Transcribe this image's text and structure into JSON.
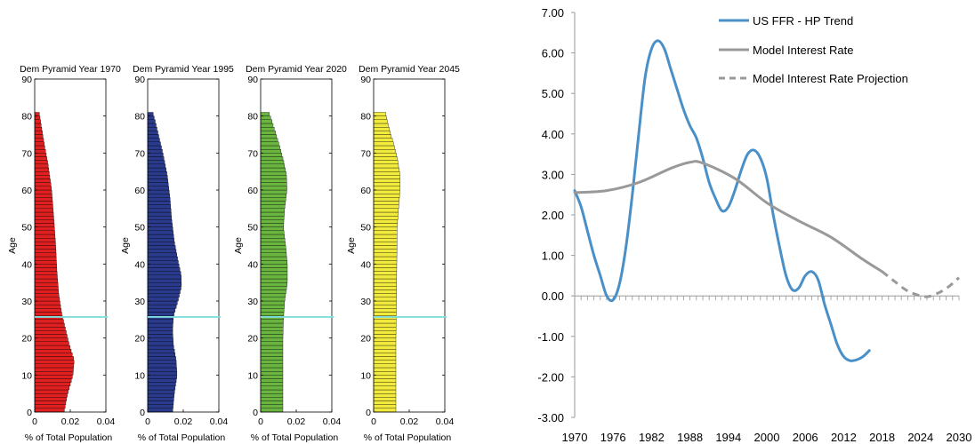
{
  "chart_data": [
    {
      "type": "bar",
      "orientation": "horizontal",
      "title": "Dem Pyramid Year 1970",
      "xlabel": "% of Total Population",
      "ylabel": "Age",
      "xlim": [
        0,
        0.04
      ],
      "ylim": [
        0,
        90
      ],
      "xticks": [
        "0",
        "0.02",
        "0.04"
      ],
      "yticks": [
        "0",
        "10",
        "20",
        "30",
        "40",
        "50",
        "60",
        "70",
        "80",
        "90"
      ],
      "bar_color": "#e02020",
      "reference_line_age": 25.7,
      "profile": [
        [
          0,
          0.0165
        ],
        [
          5,
          0.0185
        ],
        [
          10,
          0.0215
        ],
        [
          14,
          0.0222
        ],
        [
          18,
          0.0195
        ],
        [
          22,
          0.0175
        ],
        [
          27,
          0.015
        ],
        [
          32,
          0.0135
        ],
        [
          38,
          0.0125
        ],
        [
          45,
          0.0118
        ],
        [
          52,
          0.0108
        ],
        [
          60,
          0.0095
        ],
        [
          67,
          0.0075
        ],
        [
          72,
          0.0055
        ],
        [
          77,
          0.0038
        ],
        [
          81,
          0.0025
        ]
      ]
    },
    {
      "type": "bar",
      "orientation": "horizontal",
      "title": "Dem Pyramid Year 1995",
      "xlabel": "% of Total Population",
      "ylabel": "Age",
      "xlim": [
        0,
        0.04
      ],
      "ylim": [
        0,
        90
      ],
      "xticks": [
        "0",
        "0.02",
        "0.04"
      ],
      "yticks": [
        "0",
        "10",
        "20",
        "30",
        "40",
        "50",
        "60",
        "70",
        "80",
        "90"
      ],
      "bar_color": "#2a3a8c",
      "reference_line_age": 25.7,
      "profile": [
        [
          0,
          0.014
        ],
        [
          5,
          0.015
        ],
        [
          10,
          0.0165
        ],
        [
          14,
          0.016
        ],
        [
          18,
          0.0145
        ],
        [
          22,
          0.014
        ],
        [
          26,
          0.0145
        ],
        [
          30,
          0.017
        ],
        [
          34,
          0.019
        ],
        [
          37,
          0.0188
        ],
        [
          41,
          0.017
        ],
        [
          46,
          0.015
        ],
        [
          52,
          0.0135
        ],
        [
          58,
          0.0125
        ],
        [
          64,
          0.011
        ],
        [
          70,
          0.0085
        ],
        [
          75,
          0.006
        ],
        [
          79,
          0.004
        ],
        [
          81,
          0.0028
        ]
      ]
    },
    {
      "type": "bar",
      "orientation": "horizontal",
      "title": "Dem Pyramid Year 2020",
      "xlabel": "% of Total Population",
      "ylabel": "Age",
      "xlim": [
        0,
        0.04
      ],
      "ylim": [
        0,
        90
      ],
      "xticks": [
        "0",
        "0.02",
        "0.04"
      ],
      "yticks": [
        "0",
        "10",
        "20",
        "30",
        "40",
        "50",
        "60",
        "70",
        "80",
        "90"
      ],
      "bar_color": "#6ab540",
      "reference_line_age": 25.7,
      "profile": [
        [
          0,
          0.0125
        ],
        [
          10,
          0.0125
        ],
        [
          20,
          0.0125
        ],
        [
          25,
          0.0128
        ],
        [
          30,
          0.0135
        ],
        [
          35,
          0.015
        ],
        [
          40,
          0.015
        ],
        [
          45,
          0.014
        ],
        [
          50,
          0.0128
        ],
        [
          55,
          0.0135
        ],
        [
          60,
          0.0148
        ],
        [
          64,
          0.0145
        ],
        [
          68,
          0.0128
        ],
        [
          72,
          0.0105
        ],
        [
          76,
          0.008
        ],
        [
          79,
          0.006
        ],
        [
          81,
          0.0045
        ]
      ]
    },
    {
      "type": "bar",
      "orientation": "horizontal",
      "title": "Dem Pyramid Year 2045",
      "xlabel": "% of Total Population",
      "ylabel": "Age",
      "xlim": [
        0,
        0.04
      ],
      "ylim": [
        0,
        90
      ],
      "xticks": [
        "0",
        "0.02",
        "0.04"
      ],
      "yticks": [
        "0",
        "10",
        "20",
        "30",
        "40",
        "50",
        "60",
        "70",
        "80",
        "90"
      ],
      "bar_color": "#f2ea3c",
      "reference_line_age": 25.7,
      "profile": [
        [
          0,
          0.0125
        ],
        [
          20,
          0.0125
        ],
        [
          30,
          0.0128
        ],
        [
          40,
          0.013
        ],
        [
          50,
          0.0132
        ],
        [
          55,
          0.014
        ],
        [
          60,
          0.0148
        ],
        [
          64,
          0.0148
        ],
        [
          68,
          0.0135
        ],
        [
          72,
          0.0115
        ],
        [
          76,
          0.009
        ],
        [
          79,
          0.0075
        ],
        [
          81,
          0.0065
        ]
      ]
    },
    {
      "type": "line",
      "x_ticks": [
        "1970",
        "1976",
        "1982",
        "1988",
        "1994",
        "2000",
        "2006",
        "2012",
        "2018",
        "2024",
        "2030"
      ],
      "y_ticks": [
        "7.00",
        "6.00",
        "5.00",
        "4.00",
        "3.00",
        "2.00",
        "1.00",
        "0.00",
        "-1.00",
        "-2.00",
        "-3.00"
      ],
      "xlim": [
        1970,
        2030
      ],
      "ylim": [
        -3,
        7
      ],
      "legend_position": "top-right",
      "series": [
        {
          "name": "US FFR - HP Trend",
          "color": "#4a90c8",
          "style": "solid",
          "x": [
            1970,
            1971,
            1972,
            1973,
            1974,
            1975,
            1976,
            1977,
            1978,
            1979,
            1980,
            1981,
            1982,
            1983,
            1984,
            1985,
            1986,
            1987,
            1988,
            1989,
            1990,
            1991,
            1992,
            1993,
            1994,
            1995,
            1996,
            1997,
            1998,
            1999,
            2000,
            2001,
            2002,
            2003,
            2004,
            2005,
            2006,
            2007,
            2008,
            2009,
            2010,
            2011,
            2012,
            2013,
            2014,
            2015,
            2016
          ],
          "y": [
            2.6,
            2.2,
            1.6,
            1.0,
            0.5,
            0.0,
            -0.1,
            0.3,
            1.2,
            2.5,
            4.0,
            5.4,
            6.1,
            6.3,
            6.1,
            5.6,
            5.1,
            4.6,
            4.2,
            3.9,
            3.4,
            2.8,
            2.4,
            2.1,
            2.2,
            2.6,
            3.1,
            3.5,
            3.6,
            3.4,
            2.9,
            2.0,
            1.2,
            0.5,
            0.15,
            0.2,
            0.5,
            0.6,
            0.4,
            -0.2,
            -0.7,
            -1.2,
            -1.5,
            -1.6,
            -1.58,
            -1.5,
            -1.35
          ]
        },
        {
          "name": "Model Interest Rate",
          "color": "#999999",
          "style": "solid",
          "x": [
            1970,
            1975,
            1980,
            1985,
            1988,
            1990,
            1995,
            2000,
            2005,
            2010,
            2015,
            2018
          ],
          "y": [
            2.55,
            2.6,
            2.8,
            3.15,
            3.3,
            3.28,
            2.9,
            2.3,
            1.85,
            1.45,
            0.9,
            0.6
          ]
        },
        {
          "name": "Model Interest Rate Projection",
          "color": "#999999",
          "style": "dashed",
          "x": [
            2018,
            2020,
            2022,
            2024,
            2025,
            2026,
            2028,
            2030
          ],
          "y": [
            0.6,
            0.35,
            0.12,
            0.0,
            -0.02,
            0.02,
            0.18,
            0.45
          ]
        }
      ]
    }
  ]
}
